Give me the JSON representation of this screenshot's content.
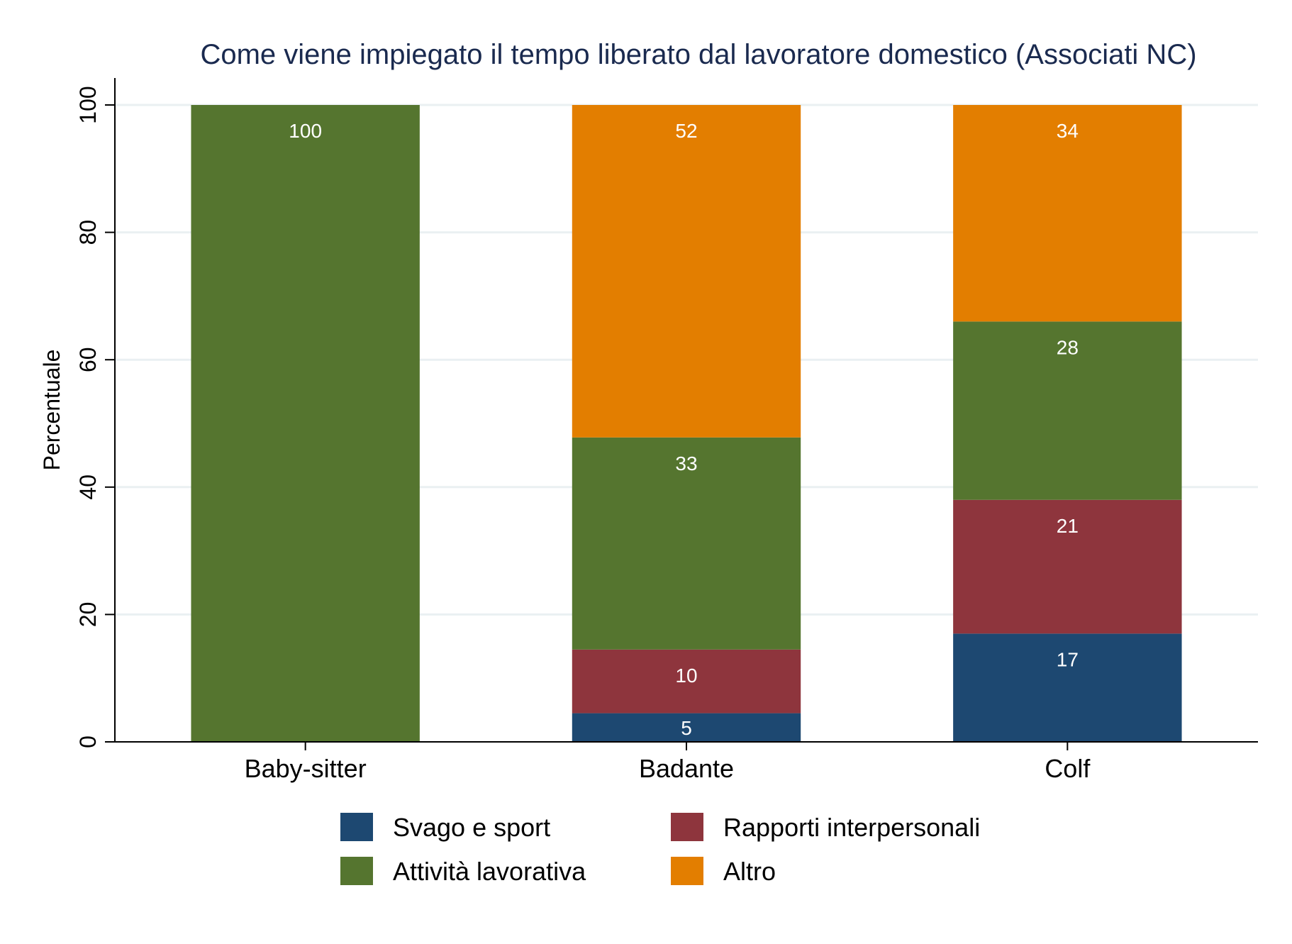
{
  "chart_data": {
    "type": "bar",
    "stacked": true,
    "title": "Come viene impiegato il tempo liberato dal lavoratore domestico (Associati NC)",
    "xlabel": "",
    "ylabel": "Percentuale",
    "ylim": [
      0,
      100
    ],
    "yticks": [
      "0",
      "20",
      "40",
      "60",
      "80",
      "100"
    ],
    "grid": true,
    "legend_position": "bottom",
    "categories": [
      "Baby-sitter",
      "Badante",
      "Colf"
    ],
    "series": [
      {
        "name": "Svago e sport",
        "color": "#1d4871",
        "values": [
          0,
          4.5,
          17
        ],
        "labels": [
          "",
          "5",
          "17"
        ]
      },
      {
        "name": "Rapporti interpersonali",
        "color": "#8e353d",
        "values": [
          0,
          10,
          21
        ],
        "labels": [
          "",
          "10",
          "21"
        ]
      },
      {
        "name": "Attività lavorativa",
        "color": "#55752f",
        "values": [
          100,
          33.3,
          28
        ],
        "labels": [
          "100",
          "33",
          "28"
        ]
      },
      {
        "name": "Altro",
        "color": "#e37e00",
        "values": [
          0,
          52.2,
          34
        ],
        "labels": [
          "",
          "52",
          "34"
        ]
      }
    ]
  }
}
